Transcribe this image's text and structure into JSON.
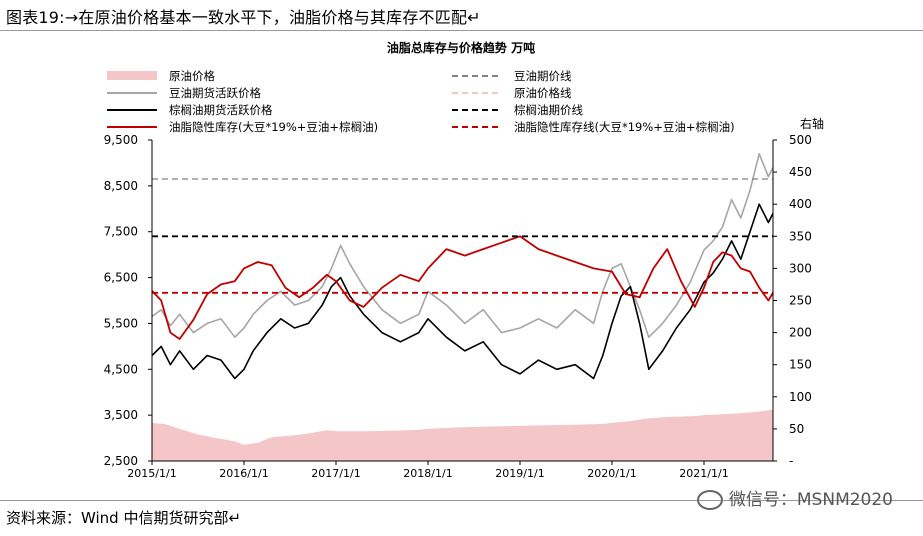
{
  "figure_caption": "图表19:→在原油价格基本一致水平下，油脂价格与其库存不匹配↵",
  "source_note": "资料来源：Wind 中信期货研究部↵",
  "watermark": "微信号：MSNM2020",
  "chart_data": {
    "type": "line",
    "title": "油脂总库存与价格趋势 万吨",
    "right_axis_label": "右轴",
    "x_ticks": [
      "2015/1/1",
      "2016/1/1",
      "2017/1/1",
      "2018/1/1",
      "2019/1/1",
      "2020/1/1",
      "2021/1/1"
    ],
    "x_range": [
      2015.0,
      2021.75
    ],
    "y_left": {
      "range": [
        2500,
        9500
      ],
      "ticks": [
        "2,500",
        "3,500",
        "4,500",
        "5,500",
        "6,500",
        "7,500",
        "8,500",
        "9,500"
      ]
    },
    "y_right": {
      "range": [
        0,
        500
      ],
      "ticks": [
        "-",
        "50",
        "100",
        "150",
        "200",
        "250",
        "300",
        "350",
        "400",
        "450",
        "500"
      ]
    },
    "legend": [
      {
        "label": "原油价格",
        "kind": "area",
        "color": "#f4c6c8"
      },
      {
        "label": "豆油期价线",
        "kind": "dash",
        "color": "#808080"
      },
      {
        "label": "豆油期货活跃价格",
        "kind": "line",
        "color": "#a6a6a6"
      },
      {
        "label": "原油价格线",
        "kind": "dash",
        "color": "#f4c6c8"
      },
      {
        "label": "棕榈油期货活跃价格",
        "kind": "line",
        "color": "#000000"
      },
      {
        "label": "棕榈油期价线",
        "kind": "dash",
        "color": "#000000"
      },
      {
        "label": "油脂隐性库存(大豆*19%+豆油+棕榈油)",
        "kind": "line",
        "color": "#c00000"
      },
      {
        "label": "油脂隐性库存线(大豆*19%+豆油+棕榈油)",
        "kind": "dash",
        "color": "#c00000"
      }
    ],
    "reference_lines": [
      {
        "name": "豆油期价线",
        "axis": "left",
        "value": 8650,
        "color": "#808080"
      },
      {
        "name": "棕榈油期价线",
        "axis": "left",
        "value": 7400,
        "color": "#000000"
      },
      {
        "name": "油脂隐性库存线(大豆*19%+豆油+棕榈油)",
        "axis": "right",
        "value": 262,
        "color": "#c00000"
      }
    ],
    "series": [
      {
        "name": "原油价格",
        "axis": "left",
        "kind": "area",
        "color": "#f4c6c8",
        "x": [
          2015.0,
          2015.15,
          2015.3,
          2015.5,
          2015.7,
          2015.9,
          2016.0,
          2016.15,
          2016.3,
          2016.5,
          2016.7,
          2016.9,
          2017.0,
          2017.3,
          2017.6,
          2017.9,
          2018.0,
          2018.3,
          2018.6,
          2018.9,
          2019.0,
          2019.3,
          2019.6,
          2019.9,
          2020.0,
          2020.2,
          2020.35,
          2020.6,
          2020.9,
          2021.0,
          2021.2,
          2021.4,
          2021.6,
          2021.75
        ],
        "y": [
          3330,
          3300,
          3200,
          3080,
          3000,
          2930,
          2850,
          2900,
          3020,
          3050,
          3100,
          3170,
          3150,
          3150,
          3160,
          3180,
          3200,
          3230,
          3250,
          3260,
          3270,
          3280,
          3290,
          3310,
          3330,
          3370,
          3420,
          3460,
          3480,
          3500,
          3520,
          3540,
          3580,
          3620
        ]
      },
      {
        "name": "豆油期货活跃价格",
        "axis": "left",
        "kind": "line",
        "color": "#a6a6a6",
        "x": [
          2015.0,
          2015.1,
          2015.2,
          2015.3,
          2015.45,
          2015.6,
          2015.75,
          2015.9,
          2016.0,
          2016.1,
          2016.25,
          2016.4,
          2016.55,
          2016.7,
          2016.85,
          2016.95,
          2017.05,
          2017.15,
          2017.3,
          2017.5,
          2017.7,
          2017.9,
          2018.0,
          2018.2,
          2018.4,
          2018.6,
          2018.8,
          2019.0,
          2019.2,
          2019.4,
          2019.6,
          2019.8,
          2019.9,
          2020.0,
          2020.1,
          2020.2,
          2020.3,
          2020.4,
          2020.55,
          2020.7,
          2020.85,
          2021.0,
          2021.1,
          2021.2,
          2021.3,
          2021.4,
          2021.5,
          2021.6,
          2021.7,
          2021.75
        ],
        "y": [
          5650,
          5800,
          5450,
          5700,
          5300,
          5500,
          5600,
          5200,
          5400,
          5700,
          6000,
          6200,
          5900,
          6000,
          6300,
          6700,
          7200,
          6800,
          6300,
          5800,
          5500,
          5700,
          6200,
          5900,
          5500,
          5800,
          5300,
          5400,
          5600,
          5400,
          5800,
          5500,
          6200,
          6700,
          6800,
          6300,
          5800,
          5200,
          5500,
          5900,
          6400,
          7100,
          7300,
          7600,
          8200,
          7800,
          8400,
          9200,
          8700,
          8900
        ]
      },
      {
        "name": "棕榈油期货活跃价格",
        "axis": "left",
        "kind": "line",
        "color": "#000000",
        "x": [
          2015.0,
          2015.1,
          2015.2,
          2015.3,
          2015.45,
          2015.6,
          2015.75,
          2015.9,
          2016.0,
          2016.1,
          2016.25,
          2016.4,
          2016.55,
          2016.7,
          2016.85,
          2016.95,
          2017.05,
          2017.15,
          2017.3,
          2017.5,
          2017.7,
          2017.9,
          2018.0,
          2018.2,
          2018.4,
          2018.6,
          2018.8,
          2019.0,
          2019.2,
          2019.4,
          2019.6,
          2019.8,
          2019.9,
          2020.0,
          2020.1,
          2020.2,
          2020.3,
          2020.4,
          2020.55,
          2020.7,
          2020.85,
          2021.0,
          2021.1,
          2021.2,
          2021.3,
          2021.4,
          2021.5,
          2021.6,
          2021.7,
          2021.75
        ],
        "y": [
          4800,
          5000,
          4600,
          4900,
          4500,
          4800,
          4700,
          4300,
          4500,
          4900,
          5300,
          5600,
          5400,
          5500,
          5900,
          6300,
          6500,
          6100,
          5700,
          5300,
          5100,
          5300,
          5600,
          5200,
          4900,
          5100,
          4600,
          4400,
          4700,
          4500,
          4600,
          4300,
          4800,
          5500,
          6100,
          6300,
          5500,
          4500,
          4900,
          5400,
          5800,
          6400,
          6600,
          6900,
          7300,
          6900,
          7500,
          8100,
          7700,
          7900
        ]
      },
      {
        "name": "油脂隐性库存(大豆*19%+豆油+棕榈油)",
        "axis": "right",
        "kind": "line",
        "color": "#c00000",
        "x": [
          2015.0,
          2015.1,
          2015.2,
          2015.3,
          2015.45,
          2015.6,
          2015.75,
          2015.9,
          2016.0,
          2016.15,
          2016.3,
          2016.45,
          2016.6,
          2016.75,
          2016.9,
          2017.0,
          2017.15,
          2017.3,
          2017.5,
          2017.7,
          2017.9,
          2018.0,
          2018.2,
          2018.4,
          2018.6,
          2018.8,
          2019.0,
          2019.2,
          2019.4,
          2019.6,
          2019.8,
          2020.0,
          2020.15,
          2020.3,
          2020.45,
          2020.6,
          2020.75,
          2020.9,
          2021.0,
          2021.1,
          2021.2,
          2021.3,
          2021.4,
          2021.5,
          2021.6,
          2021.7,
          2021.75
        ],
        "y": [
          265,
          250,
          200,
          190,
          220,
          260,
          275,
          280,
          300,
          310,
          305,
          270,
          255,
          270,
          290,
          280,
          250,
          240,
          270,
          290,
          280,
          300,
          330,
          320,
          330,
          340,
          350,
          330,
          320,
          310,
          300,
          295,
          260,
          255,
          300,
          330,
          280,
          240,
          270,
          310,
          325,
          320,
          300,
          295,
          270,
          250,
          262
        ]
      }
    ]
  }
}
